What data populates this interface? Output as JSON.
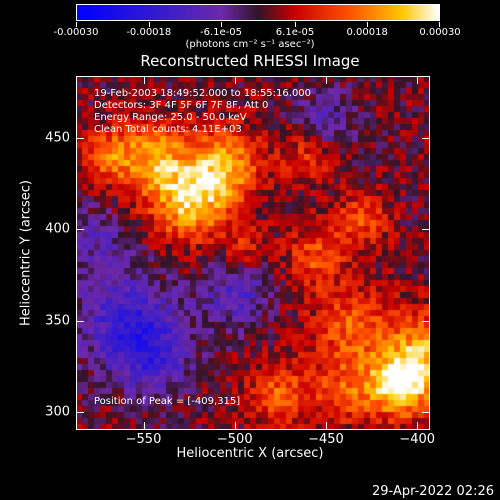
{
  "colorbar": {
    "tick_labels": [
      "-0.00030",
      "-0.00018",
      "-6.1e-05",
      "6.1e-05",
      "0.00018",
      "0.00030"
    ],
    "units": "(photons cm⁻² s⁻¹ asec⁻²)",
    "range": [
      -0.0003,
      0.0003
    ]
  },
  "info": {
    "time": "19-Feb-2003 18:49:52.000 to 18:55:16.000",
    "detectors": "Detectors: 3F 4F 5F 6F 7F 8F, Att 0",
    "energy": "Energy Range: 25.0 - 50.0 keV",
    "clean": "Clean     Total counts: 4.11E+03",
    "peak": "Position of Peak = [-409,315]"
  },
  "footer": {
    "date": "29-Apr-2022 02:26"
  },
  "chart_data": {
    "type": "heatmap",
    "title": "Reconstructed RHESSI Image",
    "xlabel": "Heliocentric X (arcsec)",
    "ylabel": "Heliocentric Y (arcsec)",
    "xlim": [
      -587,
      -393
    ],
    "ylim": [
      290,
      484
    ],
    "x_ticks": [
      -550,
      -500,
      -450,
      -400
    ],
    "x_tick_labels": [
      "−550",
      "−500",
      "−450",
      "−400"
    ],
    "y_ticks": [
      300,
      350,
      400,
      450
    ],
    "y_tick_labels": [
      "300",
      "350",
      "400",
      "450"
    ],
    "peak": [
      -409,
      315
    ],
    "sources": [
      {
        "x": -409,
        "y": 315,
        "amp": 1.0,
        "sigma": 12
      },
      {
        "x": -395,
        "y": 335,
        "amp": 0.55,
        "sigma": 14
      },
      {
        "x": -435,
        "y": 345,
        "amp": 0.45,
        "sigma": 16
      },
      {
        "x": -455,
        "y": 385,
        "amp": 0.4,
        "sigma": 12
      },
      {
        "x": -505,
        "y": 435,
        "amp": 0.65,
        "sigma": 14
      },
      {
        "x": -525,
        "y": 415,
        "amp": 0.75,
        "sigma": 15
      },
      {
        "x": -545,
        "y": 440,
        "amp": 0.6,
        "sigma": 14
      },
      {
        "x": -570,
        "y": 440,
        "amp": 0.45,
        "sigma": 10
      },
      {
        "x": -460,
        "y": 440,
        "amp": 0.35,
        "sigma": 10
      },
      {
        "x": -430,
        "y": 405,
        "amp": 0.4,
        "sigma": 10
      },
      {
        "x": -475,
        "y": 310,
        "amp": 0.45,
        "sigma": 12
      },
      {
        "x": -440,
        "y": 310,
        "amp": 0.4,
        "sigma": 12
      },
      {
        "x": -495,
        "y": 390,
        "amp": 0.3,
        "sigma": 8
      },
      {
        "x": -560,
        "y": 350,
        "amp": -0.55,
        "sigma": 18
      },
      {
        "x": -545,
        "y": 330,
        "amp": -0.45,
        "sigma": 15
      },
      {
        "x": -500,
        "y": 365,
        "amp": -0.4,
        "sigma": 14
      },
      {
        "x": -450,
        "y": 460,
        "amp": -0.3,
        "sigma": 12
      },
      {
        "x": -575,
        "y": 395,
        "amp": -0.3,
        "sigma": 12
      }
    ]
  }
}
